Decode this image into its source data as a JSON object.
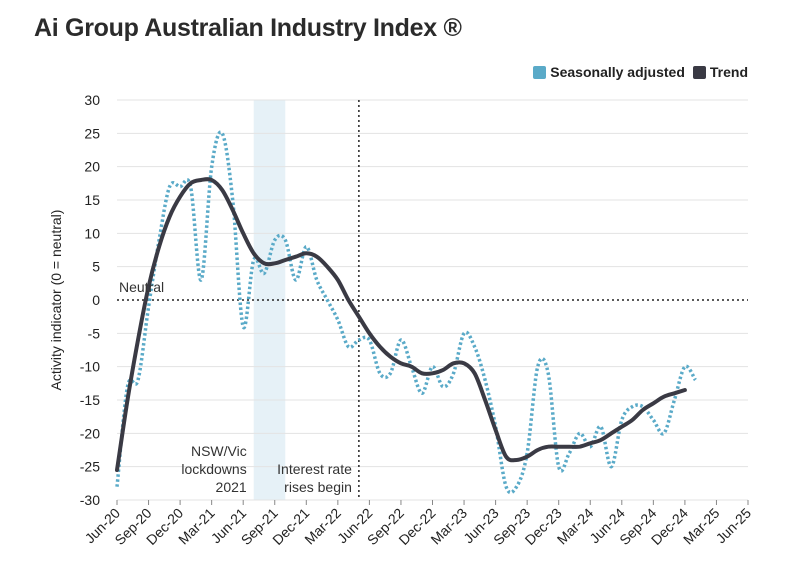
{
  "title": "Ai Group Australian Industry Index ®",
  "legend": {
    "sa_label": "Seasonally adjusted",
    "trend_label": "Trend"
  },
  "colors": {
    "sa": "#5aaac8",
    "trend": "#3a3a44",
    "lockdown_band": "#e6f1f7",
    "grid": "#e3e3e3"
  },
  "chart_data": {
    "type": "line",
    "title": "Ai Group Australian Industry Index ®",
    "xlabel": "",
    "ylabel": "Activity indicator (0 = neutral)",
    "ylim": [
      -30,
      30
    ],
    "yticks": [
      30,
      25,
      20,
      15,
      10,
      5,
      0,
      -5,
      -10,
      -15,
      -20,
      -25,
      -30
    ],
    "grid": true,
    "legend_position": "top-right",
    "x_start": "Jun-20",
    "x_end": "Jun-25",
    "xticks": [
      "Jun-20",
      "Sep-20",
      "Dec-20",
      "Mar-21",
      "Jun-21",
      "Sep-21",
      "Dec-21",
      "Mar-22",
      "Jun-22",
      "Sep-22",
      "Dec-22",
      "Mar-23",
      "Jun-23",
      "Sep-23",
      "Dec-23",
      "Mar-24",
      "Jun-24",
      "Sep-24",
      "Dec-24",
      "Mar-25",
      "Jun-25"
    ],
    "series": [
      {
        "name": "Seasonally adjusted",
        "style": "dotted",
        "values": [
          -28,
          -13,
          -12,
          -1,
          9,
          17,
          17,
          17,
          3,
          20,
          25,
          15,
          -4,
          6,
          4,
          9,
          9,
          3,
          8,
          3,
          0,
          -3,
          -7,
          -6,
          -6,
          -11,
          -11,
          -6,
          -10,
          -14,
          -10,
          -13,
          -11,
          -5,
          -7,
          -12,
          -19,
          -28,
          -28,
          -23,
          -10,
          -11,
          -25,
          -23,
          -20,
          -22,
          -19,
          -25,
          -18,
          -16,
          -16,
          -18,
          -20,
          -15,
          -10,
          -12
        ]
      },
      {
        "name": "Trend",
        "style": "solid",
        "values": [
          -25.5,
          -15,
          -6,
          2,
          8,
          12.5,
          15.5,
          17.5,
          18,
          18,
          16.5,
          13.5,
          10,
          7,
          5.5,
          5.5,
          6,
          6.5,
          7,
          6.5,
          5,
          3,
          0,
          -2.5,
          -5,
          -7,
          -8.5,
          -9.5,
          -10,
          -11,
          -11,
          -10.5,
          -9.5,
          -9.5,
          -11,
          -15,
          -19.5,
          -23.5,
          -24,
          -23.5,
          -22.5,
          -22,
          -22,
          -22,
          -22,
          -21.5,
          -21,
          -20,
          -19,
          -18,
          -16.5,
          -15.5,
          -14.5,
          -14,
          -13.5
        ]
      }
    ],
    "annotations": [
      {
        "text": "Neutral",
        "at": "y=0"
      },
      {
        "text": "NSW/Vic lockdowns 2021",
        "lines": [
          "NSW/Vic",
          "lockdowns",
          "2021"
        ],
        "band": [
          "Jul-21",
          "Oct-21"
        ]
      },
      {
        "text": "Interest rate rises begin",
        "lines": [
          "Interest rate",
          "rises begin"
        ],
        "at": "May-22"
      }
    ]
  }
}
